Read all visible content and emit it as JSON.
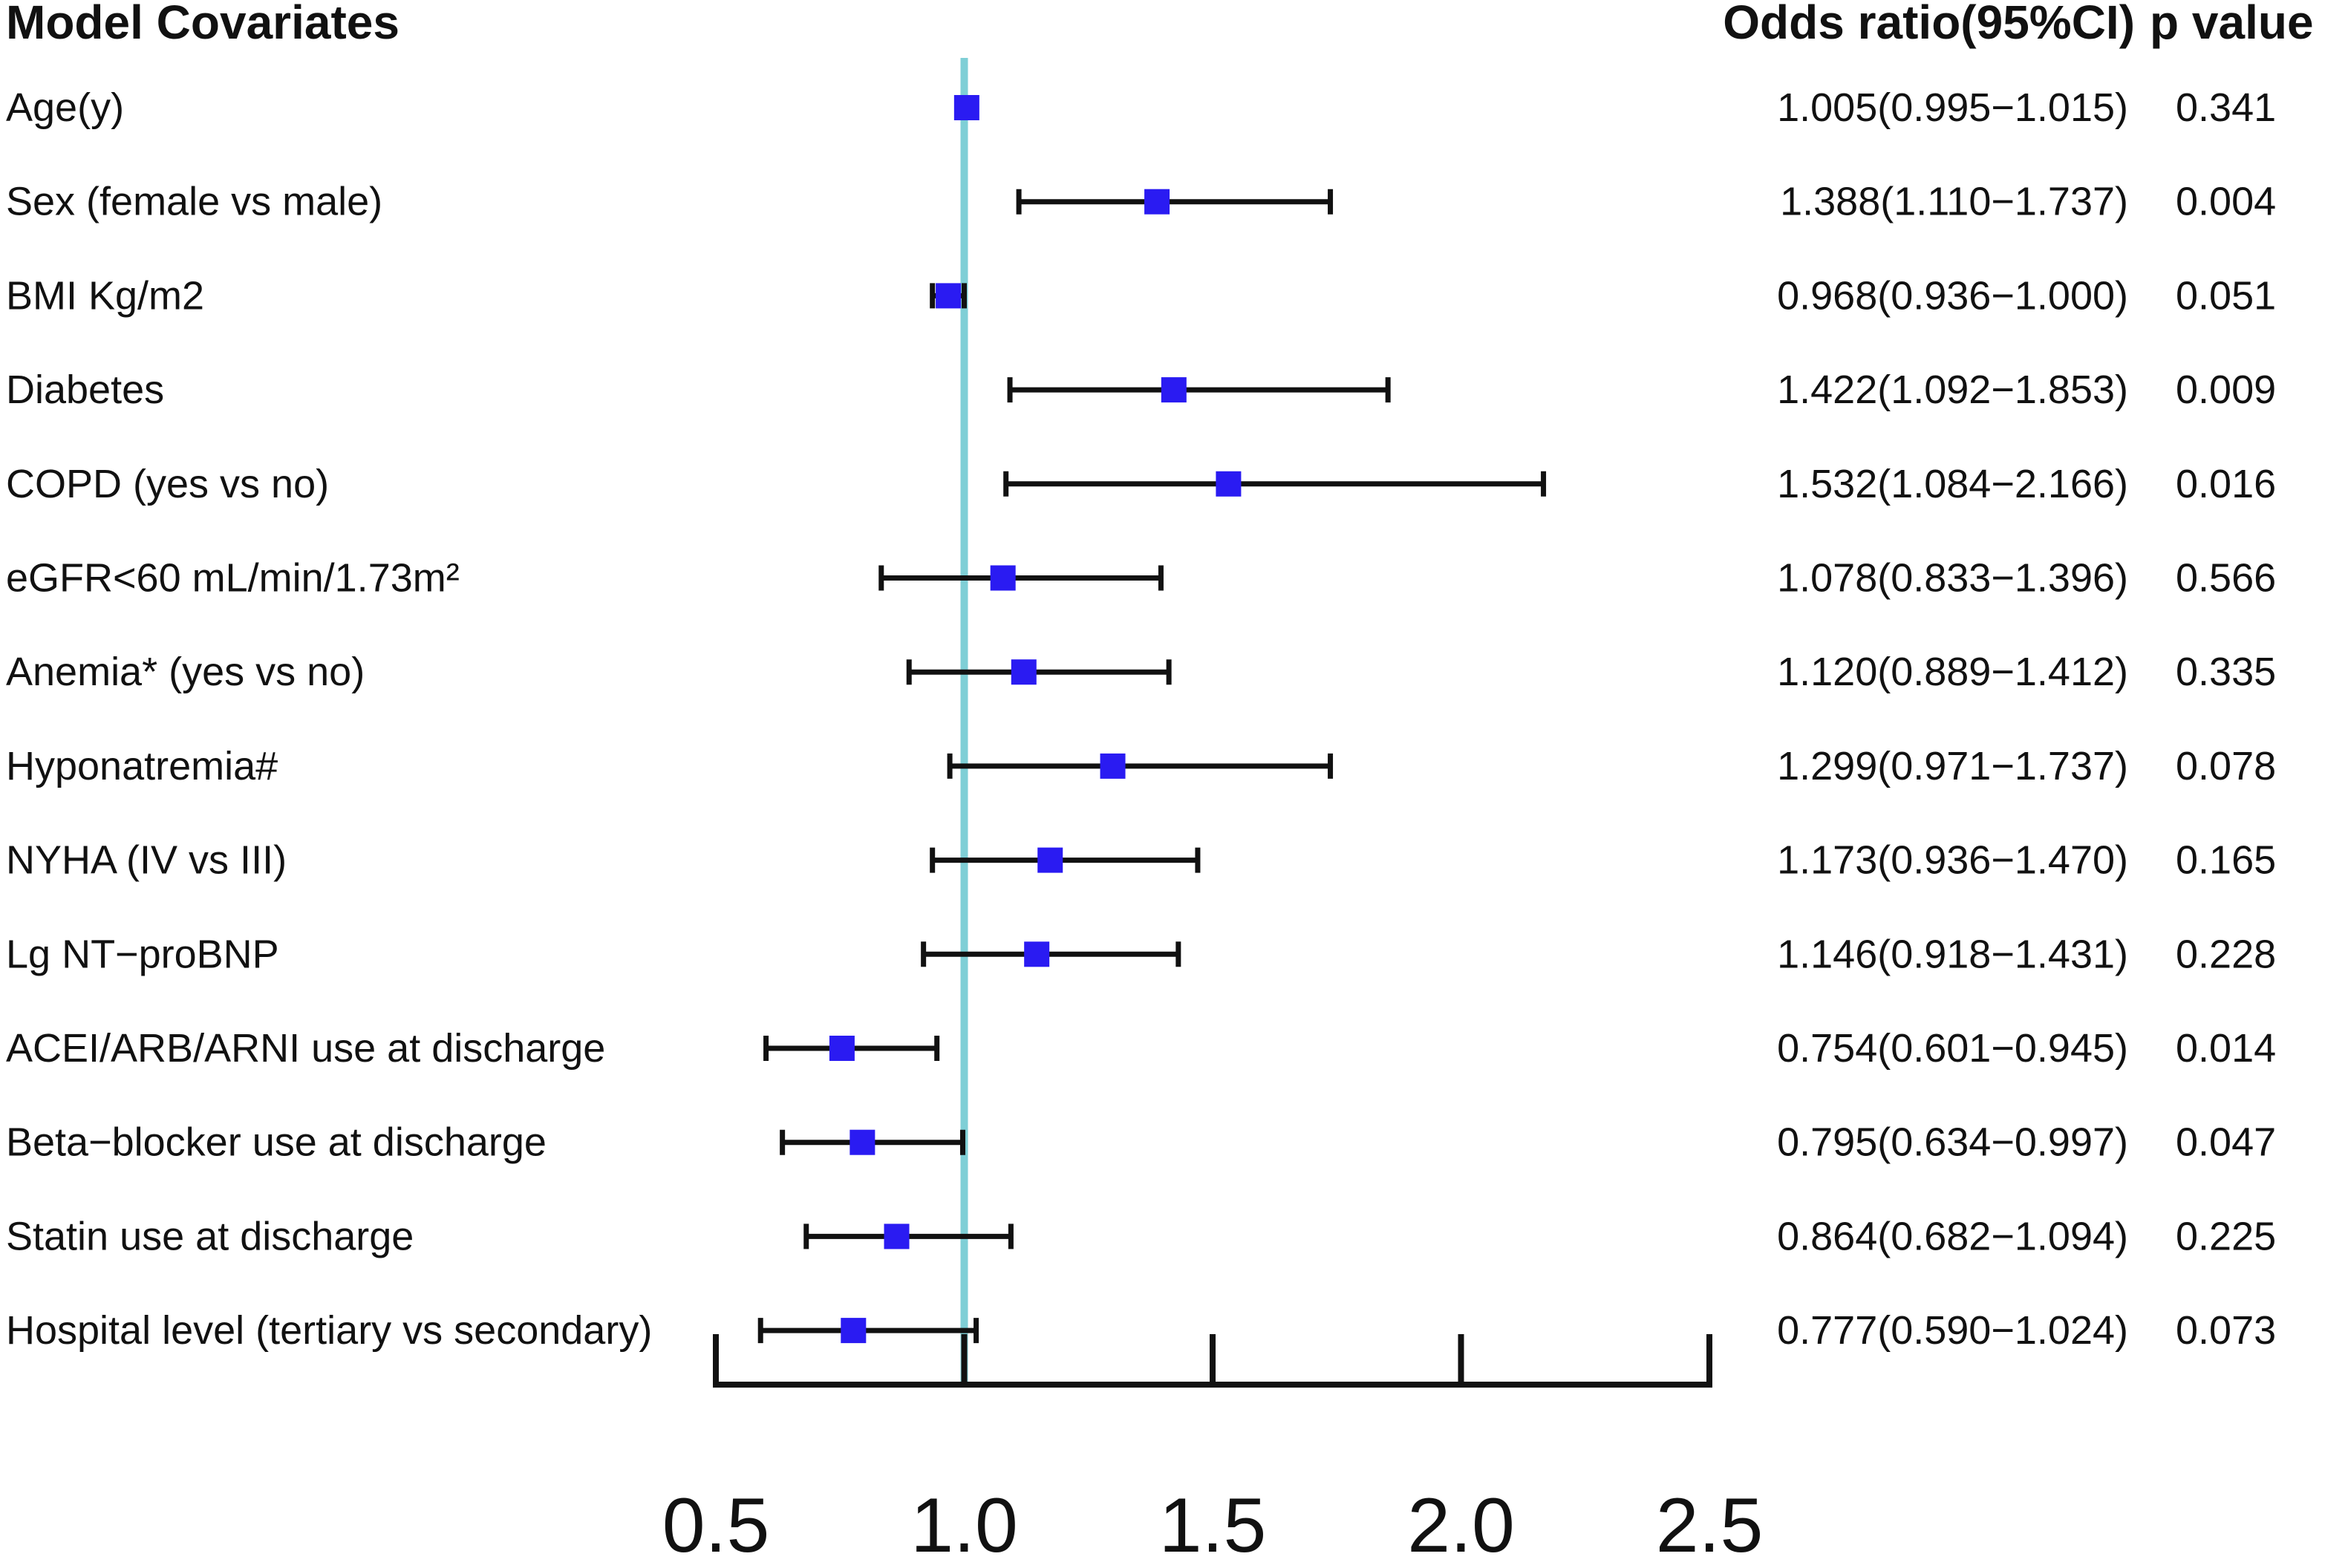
{
  "chart_data": {
    "type": "forest",
    "headers": {
      "covariates": "Model Covariates",
      "or": "Odds ratio(95%CI)",
      "p": "p value"
    },
    "reference_value": 1.0,
    "xlim": [
      0.5,
      2.5
    ],
    "ticks": [
      {
        "value": 0.5,
        "label": "0.5"
      },
      {
        "value": 1.0,
        "label": "1.0"
      },
      {
        "value": 1.5,
        "label": "1.5"
      },
      {
        "value": 2.0,
        "label": "2.0"
      },
      {
        "value": 2.5,
        "label": "2.5"
      }
    ],
    "rows": [
      {
        "label": "Age(y)",
        "or": 1.005,
        "lo": 0.995,
        "hi": 1.015,
        "or_text": "1.005(0.995−1.015)",
        "p": "0.341"
      },
      {
        "label": "Sex (female vs male)",
        "or": 1.388,
        "lo": 1.11,
        "hi": 1.737,
        "or_text": "1.388(1.110−1.737)",
        "p": "0.004"
      },
      {
        "label": "BMI Kg/m2",
        "or": 0.968,
        "lo": 0.936,
        "hi": 1.0,
        "or_text": "0.968(0.936−1.000)",
        "p": "0.051"
      },
      {
        "label": "Diabetes",
        "or": 1.422,
        "lo": 1.092,
        "hi": 1.853,
        "or_text": "1.422(1.092−1.853)",
        "p": "0.009"
      },
      {
        "label": "COPD (yes vs no)",
        "or": 1.532,
        "lo": 1.084,
        "hi": 2.166,
        "or_text": "1.532(1.084−2.166)",
        "p": "0.016"
      },
      {
        "label": "eGFR<60 mL/min/1.73m²",
        "or": 1.078,
        "lo": 0.833,
        "hi": 1.396,
        "or_text": "1.078(0.833−1.396)",
        "p": "0.566"
      },
      {
        "label": "Anemia* (yes vs no)",
        "or": 1.12,
        "lo": 0.889,
        "hi": 1.412,
        "or_text": "1.120(0.889−1.412)",
        "p": "0.335"
      },
      {
        "label": "Hyponatremia#",
        "or": 1.299,
        "lo": 0.971,
        "hi": 1.737,
        "or_text": "1.299(0.971−1.737)",
        "p": "0.078"
      },
      {
        "label": "NYHA (IV vs III)",
        "or": 1.173,
        "lo": 0.936,
        "hi": 1.47,
        "or_text": "1.173(0.936−1.470)",
        "p": "0.165"
      },
      {
        "label": "Lg NT−proBNP",
        "or": 1.146,
        "lo": 0.918,
        "hi": 1.431,
        "or_text": "1.146(0.918−1.431)",
        "p": "0.228"
      },
      {
        "label": "ACEI/ARB/ARNI use at discharge",
        "or": 0.754,
        "lo": 0.601,
        "hi": 0.945,
        "or_text": "0.754(0.601−0.945)",
        "p": "0.014"
      },
      {
        "label": "Beta−blocker use at discharge",
        "or": 0.795,
        "lo": 0.634,
        "hi": 0.997,
        "or_text": "0.795(0.634−0.997)",
        "p": "0.047"
      },
      {
        "label": "Statin use at discharge",
        "or": 0.864,
        "lo": 0.682,
        "hi": 1.094,
        "or_text": "0.864(0.682−1.094)",
        "p": "0.225"
      },
      {
        "label": "Hospital level (tertiary vs secondary)",
        "or": 0.777,
        "lo": 0.59,
        "hi": 1.024,
        "or_text": "0.777(0.590−1.024)",
        "p": "0.073"
      }
    ],
    "colors": {
      "marker": "#2a1bf2",
      "ci_line": "#111111",
      "reference_line": "#7fcfd6",
      "axis": "#111111",
      "text": "#111111"
    }
  }
}
